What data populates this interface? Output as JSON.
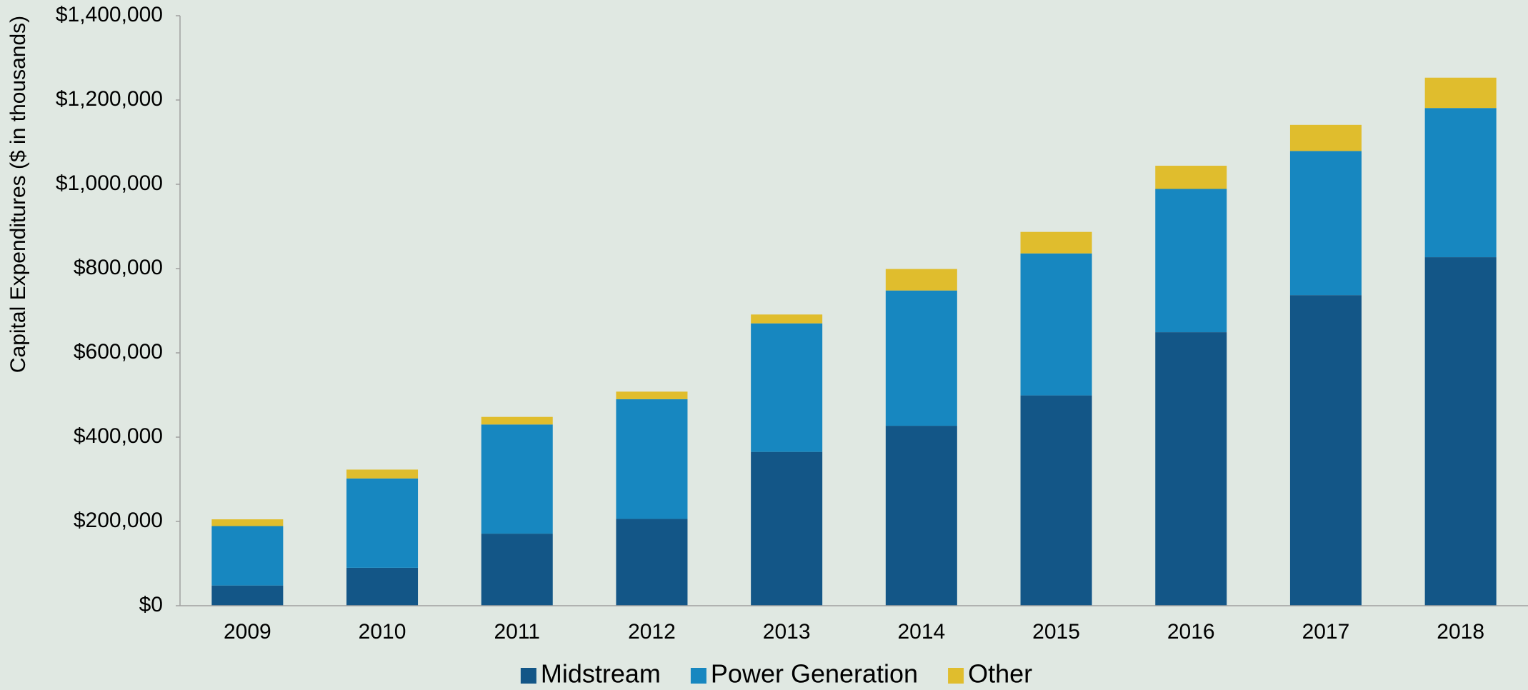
{
  "chart_data": {
    "type": "stacked_bar",
    "y_label": "Capital Expenditures ($ in thousands)",
    "categories": [
      "2009",
      "2010",
      "2011",
      "2012",
      "2013",
      "2014",
      "2015",
      "2016",
      "2017",
      "2018"
    ],
    "series": [
      {
        "name": "Midstream",
        "color": "#135687",
        "values": [
          48000,
          90000,
          171000,
          206000,
          365000,
          427000,
          499000,
          649000,
          737000,
          827000
        ]
      },
      {
        "name": "Power Generation",
        "color": "#1787c0",
        "values": [
          141000,
          212000,
          259000,
          284000,
          305000,
          321000,
          337000,
          340000,
          342000,
          354000
        ]
      },
      {
        "name": "Other",
        "color": "#e0bd2d",
        "values": [
          16000,
          21000,
          18000,
          18000,
          21000,
          51000,
          51000,
          55000,
          62000,
          72000
        ]
      }
    ],
    "ylim": [
      0,
      1400000
    ],
    "yticks": [
      {
        "value": 0,
        "label": "$0"
      },
      {
        "value": 200000,
        "label": "$200,000"
      },
      {
        "value": 400000,
        "label": "$400,000"
      },
      {
        "value": 600000,
        "label": "$600,000"
      },
      {
        "value": 800000,
        "label": "$800,000"
      },
      {
        "value": 1000000,
        "label": "$1,000,000"
      },
      {
        "value": 1200000,
        "label": "$1,200,000"
      },
      {
        "value": 1400000,
        "label": "$1,400,000"
      }
    ],
    "legend": "bottom"
  }
}
